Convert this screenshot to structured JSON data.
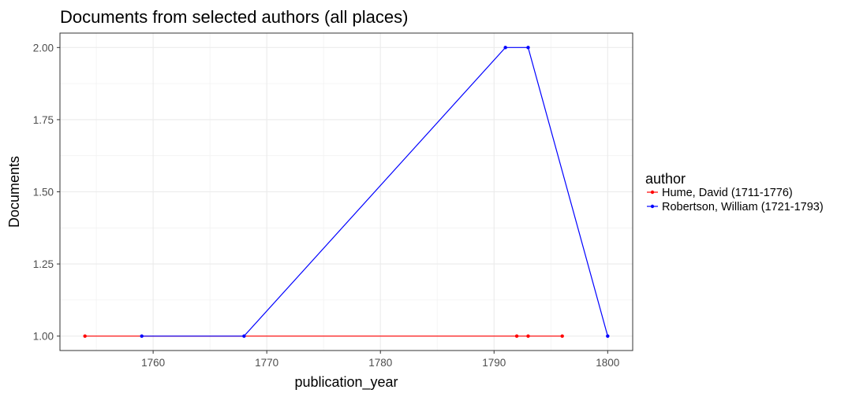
{
  "chart_data": {
    "type": "line",
    "title": "Documents from selected authors (all places)",
    "xlabel": "publication_year",
    "ylabel": "Documents",
    "xlim": [
      1751.8,
      1802.2
    ],
    "ylim": [
      0.95,
      2.05
    ],
    "x_ticks": [
      1760,
      1770,
      1780,
      1790,
      1800
    ],
    "y_ticks": [
      1.0,
      1.25,
      1.5,
      1.75,
      2.0
    ],
    "x_tick_labels": [
      "1760",
      "1770",
      "1780",
      "1790",
      "1800"
    ],
    "y_tick_labels": [
      "1.00",
      "1.25",
      "1.50",
      "1.75",
      "2.00"
    ],
    "grid": true,
    "legend": {
      "title": "author",
      "position": "right"
    },
    "series": [
      {
        "name": "Hume, David (1711-1776)",
        "color": "#ff0000",
        "points": [
          {
            "x": 1754,
            "y": 1
          },
          {
            "x": 1792,
            "y": 1
          },
          {
            "x": 1793,
            "y": 1
          },
          {
            "x": 1796,
            "y": 1
          }
        ]
      },
      {
        "name": "Robertson, William (1721-1793)",
        "color": "#0000ff",
        "points": [
          {
            "x": 1759,
            "y": 1
          },
          {
            "x": 1768,
            "y": 1
          },
          {
            "x": 1791,
            "y": 2
          },
          {
            "x": 1793,
            "y": 2
          },
          {
            "x": 1800,
            "y": 1
          }
        ]
      }
    ]
  }
}
